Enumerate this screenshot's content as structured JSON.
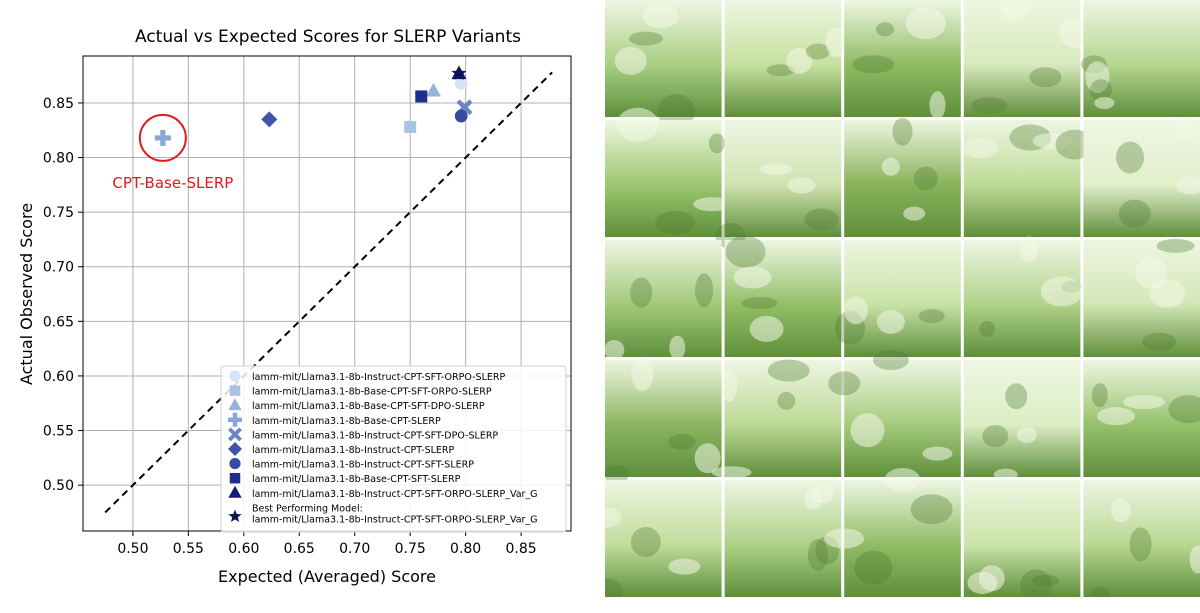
{
  "chart_data": {
    "type": "scatter",
    "title": "Actual vs Expected Scores for SLERP Variants",
    "xlabel": "Expected (Averaged) Score",
    "ylabel": "Actual Observed Score",
    "xlim": [
      0.455,
      0.895
    ],
    "ylim": [
      0.458,
      0.893
    ],
    "xticks": [
      0.5,
      0.55,
      0.6,
      0.65,
      0.7,
      0.75,
      0.8,
      0.85
    ],
    "yticks": [
      0.5,
      0.55,
      0.6,
      0.65,
      0.7,
      0.75,
      0.8,
      0.85
    ],
    "xtick_labels": [
      "0.50",
      "0.55",
      "0.60",
      "0.65",
      "0.70",
      "0.75",
      "0.80",
      "0.85"
    ],
    "ytick_labels": [
      "0.50",
      "0.55",
      "0.60",
      "0.65",
      "0.70",
      "0.75",
      "0.80",
      "0.85"
    ],
    "grid": true,
    "legend_position": "lower-right",
    "reference_line": {
      "style": "dashed",
      "color": "#000000",
      "from": [
        0.475,
        0.475
      ],
      "to": [
        0.878,
        0.878
      ]
    },
    "series": [
      {
        "name": "lamm-mit/Llama3.1-8b-Instruct-CPT-SFT-ORPO-SLERP",
        "marker": "circle",
        "color": "#d4e4f5",
        "x": 0.796,
        "y": 0.868
      },
      {
        "name": "lamm-mit/Llama3.1-8b-Base-CPT-SFT-ORPO-SLERP",
        "marker": "square",
        "color": "#a9c3e8",
        "x": 0.75,
        "y": 0.828
      },
      {
        "name": "lamm-mit/Llama3.1-8b-Base-CPT-SFT-DPO-SLERP",
        "marker": "triangle",
        "color": "#96b2de",
        "x": 0.771,
        "y": 0.861
      },
      {
        "name": "lamm-mit/Llama3.1-8b-Base-CPT-SLERP",
        "marker": "plus",
        "color": "#8aa5d8",
        "x": 0.527,
        "y": 0.818
      },
      {
        "name": "lamm-mit/Llama3.1-8b-Instruct-CPT-SFT-DPO-SLERP",
        "marker": "x",
        "color": "#6b84c6",
        "x": 0.799,
        "y": 0.846
      },
      {
        "name": "lamm-mit/Llama3.1-8b-Instruct-CPT-SLERP",
        "marker": "diamond",
        "color": "#4055a8",
        "x": 0.623,
        "y": 0.835
      },
      {
        "name": "lamm-mit/Llama3.1-8b-Instruct-CPT-SFT-SLERP",
        "marker": "circle",
        "color": "#3a4aa3",
        "x": 0.796,
        "y": 0.838
      },
      {
        "name": "lamm-mit/Llama3.1-8b-Base-CPT-SFT-SLERP",
        "marker": "square",
        "color": "#1f2d8c",
        "x": 0.76,
        "y": 0.856
      },
      {
        "name": "lamm-mit/Llama3.1-8b-Instruct-CPT-SFT-ORPO-SLERP_Var_G",
        "marker": "triangle",
        "color": "#111a78",
        "x": 0.794,
        "y": 0.877
      },
      {
        "name": "Best Performing Model:\nlamm-mit/Llama3.1-8b-Instruct-CPT-SFT-ORPO-SLERP_Var_G",
        "marker": "star",
        "color": "#0d1450",
        "x": 0.794,
        "y": 0.877
      }
    ],
    "annotation": {
      "text": "CPT-Base-SLERP",
      "color": "#e31a1c",
      "target_x": 0.527,
      "target_y": 0.818
    }
  },
  "gallery": {
    "rows": 5,
    "cols": 5,
    "image_palette": [
      "#a9cf82",
      "#c6e1a0",
      "#8fbb63",
      "#d8e9bd",
      "#b5d68f",
      "#9cc870",
      "#cfe3b0",
      "#88b35b",
      "#bedb98",
      "#e2efcc",
      "#a2c97a",
      "#93bf68",
      "#c9e2a6",
      "#b0d38a",
      "#d3e7b6",
      "#8bb660",
      "#bcd995",
      "#a5cc7e",
      "#dceec4",
      "#96c26c",
      "#c1dd9c",
      "#aed188",
      "#90bc65",
      "#cbe4aa",
      "#b8d892"
    ]
  }
}
